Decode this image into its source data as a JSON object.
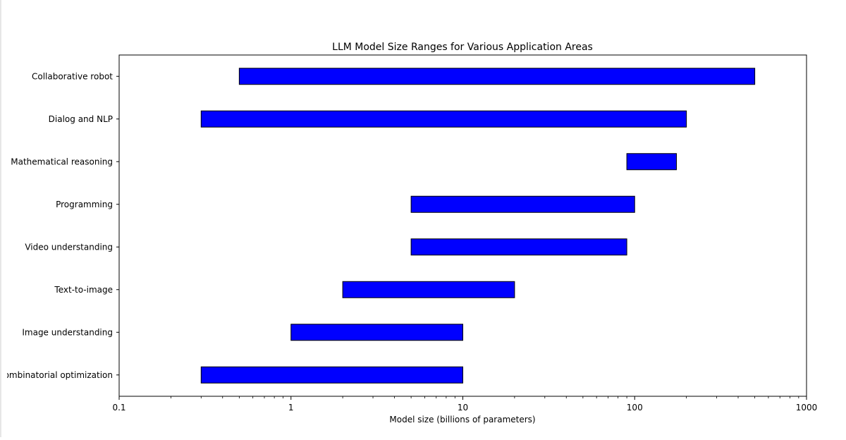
{
  "chart_data": {
    "type": "bar",
    "orientation": "horizontal-range",
    "title": "LLM Model Size Ranges for Various Application Areas",
    "xlabel": "Model size (billions of parameters)",
    "ylabel": "",
    "xscale": "log",
    "xlim": [
      0.1,
      1000
    ],
    "xticks": [
      0.1,
      1,
      10,
      100,
      1000
    ],
    "xtick_labels": [
      "0.1",
      "1",
      "10",
      "100",
      "1000"
    ],
    "grid": false,
    "legend": "none",
    "bar_color": "#0000ff",
    "edge_color": "#000000",
    "categories": [
      "Collaborative robot",
      "Dialog and NLP",
      "Mathematical reasoning",
      "Programming",
      "Video understanding",
      "Text-to-image",
      "Image understanding",
      "Combinatorial optimization"
    ],
    "ranges": [
      [
        0.5,
        500
      ],
      [
        0.3,
        200
      ],
      [
        90,
        175
      ],
      [
        5,
        100
      ],
      [
        5,
        90
      ],
      [
        2,
        20
      ],
      [
        1,
        10
      ],
      [
        0.3,
        10
      ]
    ]
  }
}
